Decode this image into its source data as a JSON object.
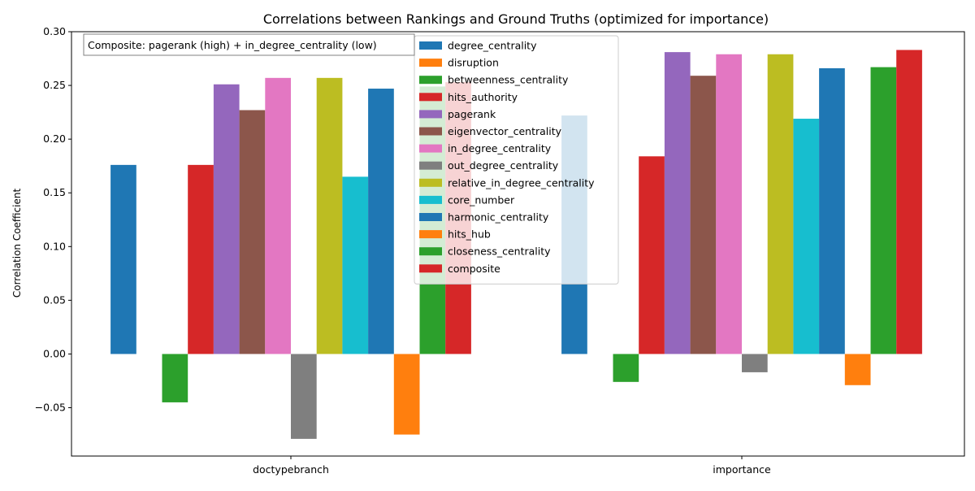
{
  "chart_data": {
    "type": "bar",
    "title": "Correlations between Rankings and Ground Truths (optimized for importance)",
    "ylabel": "Correlation Coefficient",
    "xlabel": "",
    "ylim": [
      -0.095,
      0.3
    ],
    "yticks": [
      -0.05,
      0.0,
      0.05,
      0.1,
      0.15,
      0.2,
      0.25,
      0.3
    ],
    "ytick_labels": [
      "−0.05",
      "0.00",
      "0.05",
      "0.10",
      "0.15",
      "0.20",
      "0.25",
      "0.30"
    ],
    "categories": [
      "doctypebranch",
      "importance"
    ],
    "annotation": "Composite: pagerank (high) + in_degree_centrality (low)",
    "legend_position": "upper-center",
    "grid": false,
    "series": [
      {
        "name": "degree_centrality",
        "color": "#1f77b4",
        "values": [
          0.176,
          0.222
        ]
      },
      {
        "name": "disruption",
        "color": "#ff7f0e",
        "values": [
          0.0,
          0.0
        ]
      },
      {
        "name": "betweenness_centrality",
        "color": "#2ca02c",
        "values": [
          -0.045,
          -0.026
        ]
      },
      {
        "name": "hits_authority",
        "color": "#d62728",
        "values": [
          0.176,
          0.184
        ]
      },
      {
        "name": "pagerank",
        "color": "#9467bd",
        "values": [
          0.251,
          0.281
        ]
      },
      {
        "name": "eigenvector_centrality",
        "color": "#8c564b",
        "values": [
          0.227,
          0.259
        ]
      },
      {
        "name": "in_degree_centrality",
        "color": "#e377c2",
        "values": [
          0.257,
          0.279
        ]
      },
      {
        "name": "out_degree_centrality",
        "color": "#7f7f7f",
        "values": [
          -0.079,
          -0.017
        ]
      },
      {
        "name": "relative_in_degree_centrality",
        "color": "#bcbd22",
        "values": [
          0.257,
          0.279
        ]
      },
      {
        "name": "core_number",
        "color": "#17becf",
        "values": [
          0.165,
          0.219
        ]
      },
      {
        "name": "harmonic_centrality",
        "color": "#1f77b4",
        "values": [
          0.247,
          0.266
        ]
      },
      {
        "name": "hits_hub",
        "color": "#ff7f0e",
        "values": [
          -0.075,
          -0.029
        ]
      },
      {
        "name": "closeness_centrality",
        "color": "#2ca02c",
        "values": [
          0.249,
          0.267
        ]
      },
      {
        "name": "composite",
        "color": "#d62728",
        "values": [
          0.253,
          0.283
        ]
      }
    ]
  }
}
